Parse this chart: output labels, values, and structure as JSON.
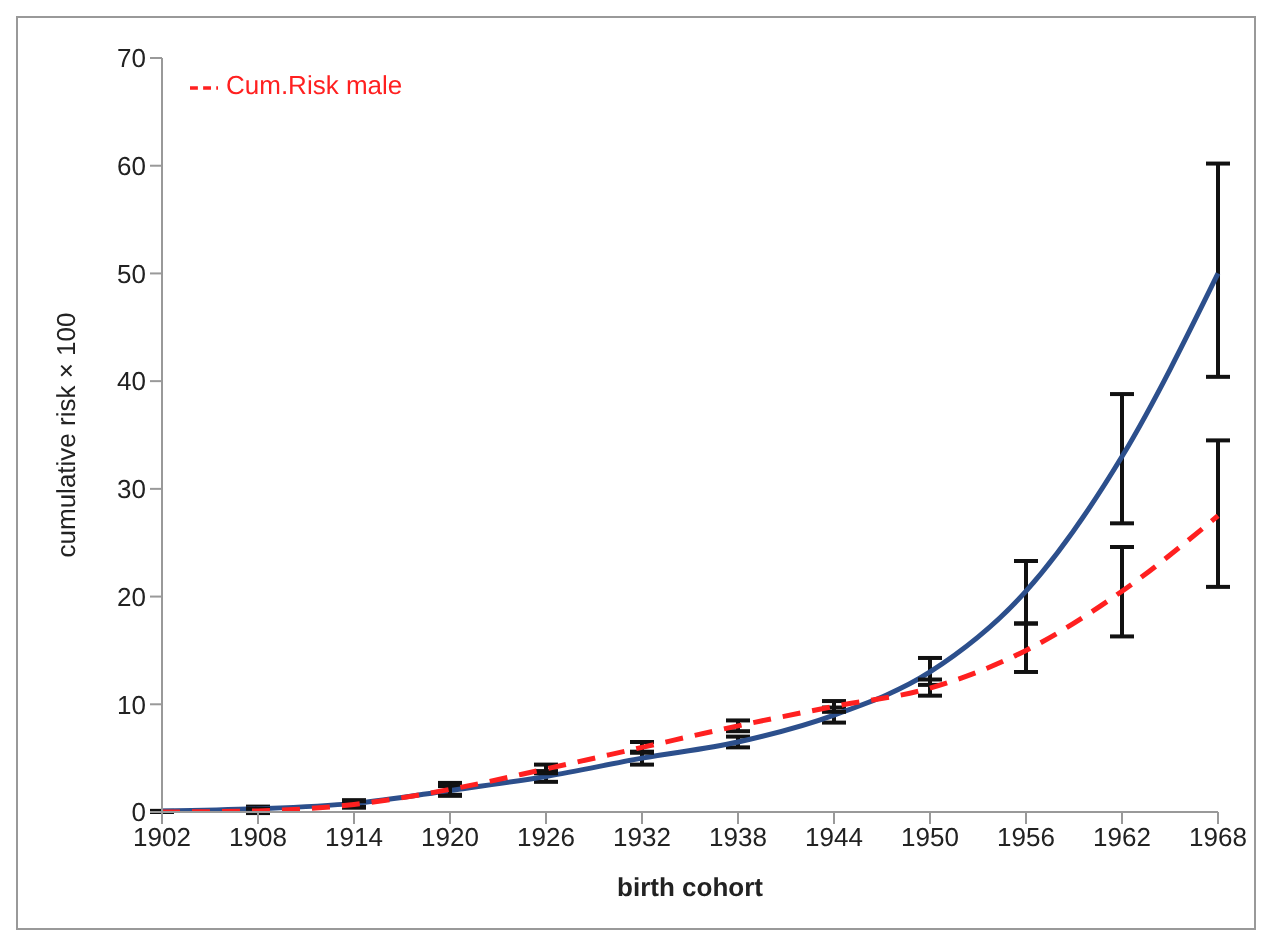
{
  "chart_data": {
    "type": "line",
    "xlabel": "birth cohort",
    "ylabel": "cumulative risk × 100",
    "categories": [
      "1902",
      "1908",
      "1914",
      "1920",
      "1926",
      "1932",
      "1938",
      "1944",
      "1950",
      "1956",
      "1962",
      "1968"
    ],
    "ylim": [
      0,
      70
    ],
    "yticks": [
      0,
      10,
      20,
      30,
      40,
      50,
      60,
      70
    ],
    "grid": false,
    "legend": "top left",
    "marker": "none",
    "series": [
      {
        "color": "#2c4f8c",
        "line_style": "solid",
        "values": [
          0.1,
          0.3,
          0.8,
          2,
          3.3,
          5,
          6.5,
          9,
          13,
          20.5,
          33,
          50
        ],
        "errors": [
          null,
          0.2,
          0.3,
          0.4,
          0.5,
          0.6,
          0.5,
          0.7,
          [
            11.8,
            14.3
          ],
          [
            17.5,
            23.3
          ],
          [
            26.8,
            38.8
          ],
          [
            40.4,
            60.2
          ]
        ]
      },
      {
        "name": "Cum.Risk male",
        "color": "#ff2020",
        "line_style": "dashed",
        "values": [
          0,
          0.1,
          0.7,
          2.1,
          4,
          6,
          8,
          9.8,
          11.5,
          15,
          20.5,
          27.5
        ],
        "errors": [
          null,
          0.2,
          0.3,
          0.6,
          0.4,
          0.5,
          0.5,
          0.5,
          [
            10.8,
            12.3
          ],
          [
            13,
            17.5
          ],
          [
            16.3,
            24.6
          ],
          [
            20.9,
            34.5
          ]
        ]
      }
    ]
  }
}
